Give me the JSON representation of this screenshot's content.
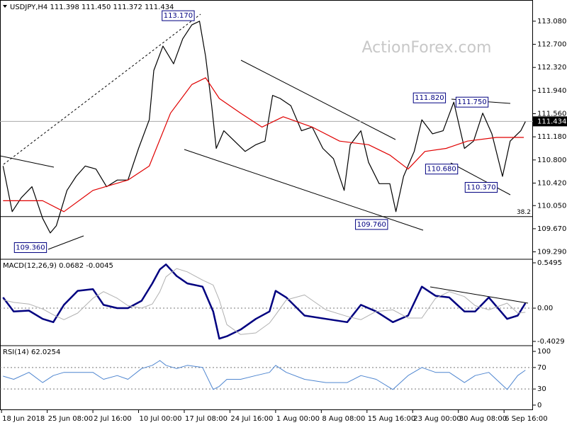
{
  "chart_data": [
    {
      "type": "line",
      "title": "USDJPY,H4  111.398 111.450 111.372 111.434",
      "watermark": "ActionForex.com",
      "xlim": [
        -1,
        349
      ],
      "ylim": [
        109.18,
        113.37
      ],
      "yticks": [
        {
          "value": 113.08,
          "label": "113.080"
        },
        {
          "value": 112.7,
          "label": "112.700"
        },
        {
          "value": 112.32,
          "label": "112.320"
        },
        {
          "value": 111.94,
          "label": "111.940"
        },
        {
          "value": 111.56,
          "label": "111.560"
        },
        {
          "value": 111.18,
          "label": "111.180"
        },
        {
          "value": 110.8,
          "label": "110.800"
        },
        {
          "value": 110.42,
          "label": "110.420"
        },
        {
          "value": 110.05,
          "label": "110.050"
        },
        {
          "value": 109.67,
          "label": "109.670"
        },
        {
          "value": 109.29,
          "label": "109.290"
        }
      ],
      "last": 111.434,
      "levels": [
        {
          "value": 109.87,
          "label": "38.2"
        }
      ],
      "series": [
        {
          "color": "#000000",
          "x": [
            1,
            7,
            13,
            20,
            27,
            32,
            36,
            43,
            49,
            55,
            62,
            69,
            76,
            83,
            90,
            97,
            100,
            106,
            113,
            119,
            125,
            130,
            134,
            138,
            141,
            146,
            153,
            160,
            167,
            173,
            178,
            183,
            190,
            197,
            204,
            211,
            218,
            225,
            229,
            236,
            241,
            248,
            255,
            259,
            264,
            271,
            276,
            283,
            290,
            297,
            304,
            310,
            316,
            322,
            329,
            334,
            341,
            344
          ],
          "values": [
            110.7,
            109.95,
            110.18,
            110.36,
            109.84,
            109.6,
            109.72,
            110.3,
            110.53,
            110.7,
            110.65,
            110.36,
            110.47,
            110.47,
            110.99,
            111.46,
            112.27,
            112.67,
            112.38,
            112.79,
            113.02,
            113.08,
            112.5,
            111.69,
            110.99,
            111.28,
            111.11,
            110.94,
            111.05,
            111.11,
            111.86,
            111.81,
            111.69,
            111.28,
            111.34,
            110.99,
            110.82,
            110.3,
            111.05,
            111.28,
            110.76,
            110.41,
            110.41,
            109.95,
            110.53,
            110.94,
            111.46,
            111.23,
            111.28,
            111.75,
            110.99,
            111.11,
            111.57,
            111.23,
            110.53,
            111.11,
            111.28,
            111.43
          ]
        },
        {
          "color": "#e00000",
          "x": [
            1,
            27,
            41,
            60,
            83,
            97,
            111,
            125,
            134,
            143,
            157,
            171,
            185,
            204,
            222,
            241,
            255,
            267,
            278,
            292,
            306,
            325,
            343
          ],
          "values": [
            110.13,
            110.13,
            109.95,
            110.3,
            110.47,
            110.7,
            111.57,
            112.04,
            112.15,
            111.81,
            111.57,
            111.34,
            111.51,
            111.34,
            111.11,
            111.05,
            110.88,
            110.65,
            110.94,
            110.99,
            111.11,
            111.17,
            111.17
          ]
        }
      ],
      "annotations": [
        {
          "text": "113.170",
          "x": 116,
          "y": 113.17
        },
        {
          "text": "111.820",
          "x": 281,
          "y": 111.82
        },
        {
          "text": "111.750",
          "x": 309,
          "y": 111.75
        },
        {
          "text": "110.680",
          "x": 289,
          "y": 110.65
        },
        {
          "text": "110.370",
          "x": 315,
          "y": 110.35
        },
        {
          "text": "109.760",
          "x": 243,
          "y": 109.74
        },
        {
          "text": "109.360",
          "x": 19,
          "y": 109.36
        }
      ]
    },
    {
      "type": "line",
      "title": "MACD(12,26,9) 0.0682 -0.0045",
      "xlim": [
        -1,
        349
      ],
      "ylim": [
        -0.446,
        0.584
      ],
      "yticks": [
        0.5495,
        {
          "value": 0,
          "label": "0.00"
        },
        -0.4029
      ],
      "levels": [
        0
      ],
      "x": [
        1,
        8,
        18,
        27,
        34,
        41,
        50,
        60,
        67,
        76,
        83,
        92,
        99,
        104,
        108,
        115,
        122,
        132,
        139,
        143,
        148,
        157,
        167,
        176,
        180,
        187,
        199,
        213,
        227,
        236,
        246,
        257,
        267,
        276,
        285,
        294,
        304,
        311,
        320,
        332,
        339,
        344
      ],
      "series": [
        {
          "color": "#000080",
          "width": 2.5,
          "values": [
            0.13,
            -0.04,
            -0.03,
            -0.13,
            -0.17,
            0.04,
            0.21,
            0.23,
            0.04,
            0.0,
            0.0,
            0.09,
            0.3,
            0.47,
            0.53,
            0.39,
            0.3,
            0.26,
            -0.04,
            -0.37,
            -0.34,
            -0.26,
            -0.13,
            -0.04,
            0.21,
            0.13,
            -0.09,
            -0.13,
            -0.17,
            0.04,
            -0.04,
            -0.17,
            -0.09,
            0.26,
            0.15,
            0.13,
            -0.04,
            -0.04,
            0.13,
            -0.13,
            -0.09,
            0.06
          ]
        },
        {
          "color": "#b0b0b0",
          "width": 1,
          "values": [
            0.1,
            0.07,
            0.05,
            -0.01,
            -0.08,
            -0.14,
            -0.06,
            0.12,
            0.2,
            0.12,
            0.03,
            0.0,
            0.05,
            0.2,
            0.38,
            0.48,
            0.44,
            0.34,
            0.28,
            0.1,
            -0.2,
            -0.32,
            -0.3,
            -0.18,
            -0.08,
            0.1,
            0.16,
            -0.02,
            -0.1,
            -0.14,
            -0.04,
            -0.02,
            -0.12,
            -0.12,
            0.12,
            0.2,
            0.14,
            0.03,
            -0.02,
            0.06,
            -0.06,
            -0.05
          ]
        }
      ]
    },
    {
      "type": "line",
      "title": "RSI(14) 62.0254",
      "xlim": [
        -1,
        349
      ],
      "ylim": [
        -8,
        108
      ],
      "yticks": [
        100,
        70,
        30,
        0
      ],
      "levels": [
        70,
        30
      ],
      "x": [
        1,
        8,
        18,
        27,
        34,
        41,
        50,
        60,
        67,
        76,
        83,
        92,
        99,
        104,
        108,
        115,
        122,
        132,
        139,
        143,
        148,
        157,
        167,
        176,
        180,
        187,
        199,
        213,
        227,
        236,
        246,
        257,
        267,
        276,
        285,
        294,
        304,
        311,
        320,
        332,
        339,
        344
      ],
      "series": [
        {
          "color": "#4f86d0",
          "width": 1,
          "values": [
            54,
            48,
            61,
            42,
            55,
            61,
            61,
            61,
            48,
            55,
            48,
            68,
            74,
            83,
            74,
            68,
            74,
            70,
            29,
            35,
            48,
            48,
            55,
            61,
            74,
            61,
            48,
            42,
            42,
            55,
            48,
            29,
            55,
            70,
            61,
            61,
            42,
            55,
            61,
            29,
            55,
            65
          ]
        }
      ],
      "xticks": [
        {
          "value": 0,
          "label": "18 Jun 2018"
        },
        {
          "value": 30,
          "label": "25 Jun 08:00"
        },
        {
          "value": 60,
          "label": "2 Jul 16:00"
        },
        {
          "value": 90,
          "label": "10 Jul 00:00"
        },
        {
          "value": 120,
          "label": "17 Jul 08:00"
        },
        {
          "value": 150,
          "label": "24 Jul 16:00"
        },
        {
          "value": 180,
          "label": "1 Aug 00:00"
        },
        {
          "value": 210,
          "label": "8 Aug 08:00"
        },
        {
          "value": 240,
          "label": "15 Aug 16:00"
        },
        {
          "value": 270,
          "label": "23 Aug 00:00"
        },
        {
          "value": 300,
          "label": "30 Aug 08:00"
        },
        {
          "value": 330,
          "label": "6 Sep 16:00"
        }
      ]
    }
  ]
}
